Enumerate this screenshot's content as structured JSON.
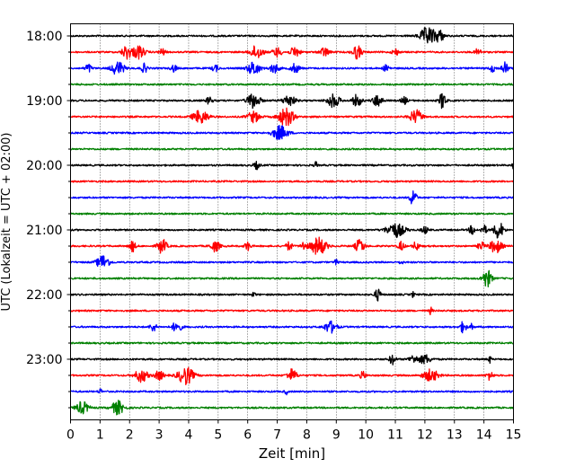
{
  "chart_data": {
    "type": "line",
    "xlabel": "Zeit  [min]",
    "ylabel": "UTC (Lokalzeit = UTC + 02:00)",
    "xlim": [
      0,
      15
    ],
    "x_ticks": [
      0,
      1,
      2,
      3,
      4,
      5,
      6,
      7,
      8,
      9,
      10,
      11,
      12,
      13,
      14,
      15
    ],
    "x_grid": "dotted",
    "trace_colors": [
      "#000000",
      "#ff0000",
      "#0000ff",
      "#008000"
    ],
    "hour_labels": [
      "18:00",
      "19:00",
      "20:00",
      "21:00",
      "22:00",
      "23:00"
    ],
    "rows": [
      {
        "color": "#000000",
        "bursts": [
          [
            12.1,
            0.25,
            2.0
          ],
          [
            12.5,
            0.15,
            1.2
          ]
        ]
      },
      {
        "color": "#ff0000",
        "bursts": [
          [
            1.9,
            0.15,
            1.5
          ],
          [
            2.3,
            0.2,
            1.5
          ],
          [
            3.1,
            0.1,
            0.8
          ],
          [
            6.3,
            0.2,
            1.5
          ],
          [
            7.0,
            0.15,
            1.0
          ],
          [
            7.6,
            0.15,
            1.2
          ],
          [
            8.6,
            0.15,
            1.0
          ],
          [
            9.7,
            0.15,
            1.5
          ],
          [
            11.0,
            0.1,
            0.8
          ],
          [
            13.8,
            0.1,
            0.8
          ]
        ]
      },
      {
        "color": "#0000ff",
        "bursts": [
          [
            0.6,
            0.1,
            1.0
          ],
          [
            1.6,
            0.2,
            1.6
          ],
          [
            2.5,
            0.1,
            1.0
          ],
          [
            3.5,
            0.1,
            0.8
          ],
          [
            4.9,
            0.1,
            0.8
          ],
          [
            6.2,
            0.2,
            1.5
          ],
          [
            6.9,
            0.15,
            1.0
          ],
          [
            7.6,
            0.15,
            1.0
          ],
          [
            10.7,
            0.1,
            0.8
          ],
          [
            14.3,
            0.1,
            0.8
          ],
          [
            14.7,
            0.1,
            1.5
          ]
        ]
      },
      {
        "color": "#008000",
        "bursts": []
      },
      {
        "color": "#000000",
        "bursts": [
          [
            4.7,
            0.1,
            0.8
          ],
          [
            6.2,
            0.2,
            1.8
          ],
          [
            7.4,
            0.2,
            1.2
          ],
          [
            8.9,
            0.2,
            1.5
          ],
          [
            9.7,
            0.15,
            1.3
          ],
          [
            10.4,
            0.15,
            1.4
          ],
          [
            11.3,
            0.1,
            0.8
          ],
          [
            12.6,
            0.1,
            2.0
          ]
        ]
      },
      {
        "color": "#ff0000",
        "bursts": [
          [
            4.4,
            0.25,
            1.5
          ],
          [
            6.2,
            0.2,
            1.2
          ],
          [
            7.3,
            0.25,
            2.0
          ],
          [
            11.7,
            0.2,
            1.5
          ]
        ]
      },
      {
        "color": "#0000ff",
        "bursts": [
          [
            7.1,
            0.25,
            1.6
          ]
        ]
      },
      {
        "color": "#008000",
        "bursts": []
      },
      {
        "color": "#000000",
        "bursts": [
          [
            6.3,
            0.1,
            0.8
          ],
          [
            8.3,
            0.05,
            0.8
          ],
          [
            15.0,
            0.05,
            0.8
          ]
        ]
      },
      {
        "color": "#ff0000",
        "bursts": []
      },
      {
        "color": "#0000ff",
        "bursts": [
          [
            11.6,
            0.1,
            2.0
          ]
        ]
      },
      {
        "color": "#008000",
        "bursts": []
      },
      {
        "color": "#000000",
        "bursts": [
          [
            11.0,
            0.3,
            1.6
          ],
          [
            12.0,
            0.1,
            0.8
          ],
          [
            13.6,
            0.1,
            1.0
          ],
          [
            14.0,
            0.1,
            1.0
          ],
          [
            14.5,
            0.15,
            2.0
          ]
        ]
      },
      {
        "color": "#ff0000",
        "bursts": [
          [
            2.1,
            0.1,
            1.2
          ],
          [
            3.1,
            0.15,
            1.6
          ],
          [
            4.9,
            0.15,
            1.2
          ],
          [
            6.0,
            0.1,
            1.0
          ],
          [
            7.4,
            0.1,
            1.0
          ],
          [
            7.9,
            0.1,
            1.0
          ],
          [
            8.4,
            0.25,
            2.0
          ],
          [
            9.8,
            0.15,
            1.5
          ],
          [
            11.2,
            0.1,
            1.0
          ],
          [
            11.7,
            0.1,
            1.0
          ],
          [
            13.9,
            0.1,
            1.0
          ],
          [
            14.4,
            0.2,
            1.5
          ]
        ]
      },
      {
        "color": "#0000ff",
        "bursts": [
          [
            1.1,
            0.2,
            1.6
          ],
          [
            9.0,
            0.05,
            0.8
          ],
          [
            11.2,
            0.05,
            0.6
          ]
        ]
      },
      {
        "color": "#008000",
        "bursts": [
          [
            14.1,
            0.15,
            2.0
          ]
        ]
      },
      {
        "color": "#000000",
        "bursts": [
          [
            6.2,
            0.05,
            0.6
          ],
          [
            10.4,
            0.1,
            1.3
          ],
          [
            11.6,
            0.05,
            0.6
          ]
        ]
      },
      {
        "color": "#ff0000",
        "bursts": [
          [
            12.2,
            0.05,
            0.8
          ]
        ]
      },
      {
        "color": "#0000ff",
        "bursts": [
          [
            2.8,
            0.1,
            1.0
          ],
          [
            3.6,
            0.15,
            1.2
          ],
          [
            8.8,
            0.2,
            1.3
          ],
          [
            13.3,
            0.1,
            1.3
          ],
          [
            13.6,
            0.05,
            0.8
          ]
        ]
      },
      {
        "color": "#008000",
        "bursts": []
      },
      {
        "color": "#000000",
        "bursts": [
          [
            10.9,
            0.1,
            1.2
          ],
          [
            11.6,
            0.15,
            0.8
          ],
          [
            12.0,
            0.2,
            1.0
          ],
          [
            14.2,
            0.05,
            0.8
          ]
        ]
      },
      {
        "color": "#ff0000",
        "bursts": [
          [
            2.4,
            0.2,
            1.5
          ],
          [
            3.0,
            0.15,
            1.0
          ],
          [
            3.9,
            0.25,
            2.0
          ],
          [
            7.5,
            0.15,
            1.4
          ],
          [
            9.9,
            0.1,
            0.8
          ],
          [
            12.2,
            0.25,
            1.3
          ],
          [
            14.2,
            0.1,
            1.0
          ]
        ]
      },
      {
        "color": "#0000ff",
        "bursts": [
          [
            1.0,
            0.05,
            0.8
          ],
          [
            7.3,
            0.05,
            0.6
          ]
        ]
      },
      {
        "color": "#008000",
        "bursts": [
          [
            0.4,
            0.2,
            1.4
          ],
          [
            1.6,
            0.2,
            1.5
          ]
        ]
      }
    ]
  }
}
